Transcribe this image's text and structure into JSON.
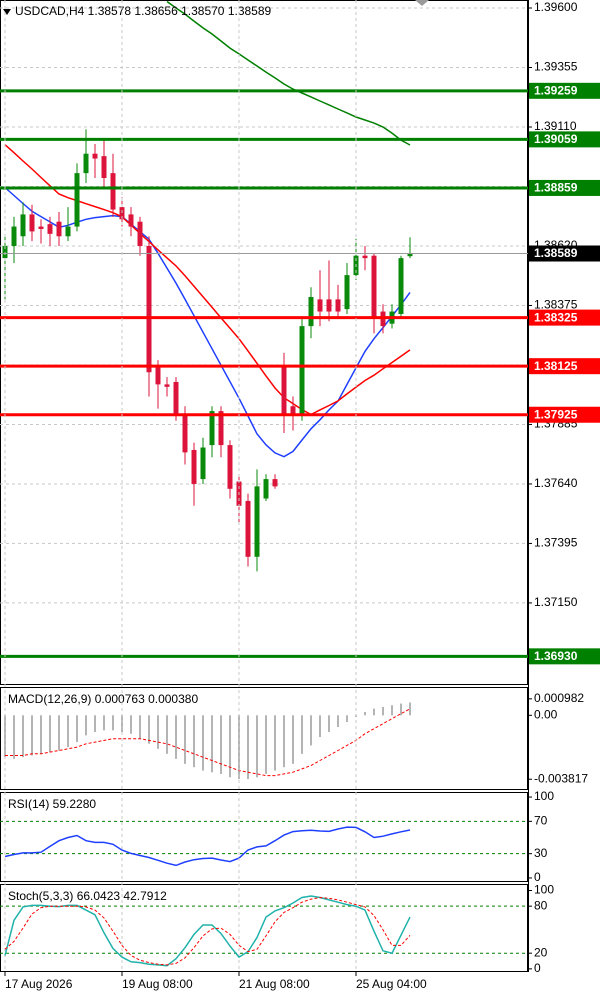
{
  "chart_data": [
    {
      "type": "candlestick",
      "title": "USDCAD,H4  1.38578 1.38656 1.38570 1.38589",
      "up_color": "#0a8a0a",
      "down_color": "#dc143c",
      "grid": true,
      "ylim": [
        1.36812,
        1.39633
      ],
      "yticks": [
        {
          "value": 1.396,
          "label": "1.39600"
        },
        1.39355,
        {
          "value": 1.3911,
          "label": "1.39110"
        },
        1.38865,
        {
          "value": 1.3862,
          "label": "1.38620"
        },
        1.38375,
        {
          "value": 1.3813,
          "label": "1.38130"
        },
        1.37885,
        {
          "value": 1.3764,
          "label": "1.37640"
        },
        1.37395,
        {
          "value": 1.3715,
          "label": "1.37150"
        }
      ],
      "open": [
        1.3857,
        1.3862,
        1.3866,
        1.3875,
        1.387,
        1.3871,
        1.3872,
        1.3866,
        1.387,
        1.3892,
        1.39,
        1.3899,
        1.3892,
        1.3878,
        1.3875,
        1.3872,
        1.3862,
        1.3812,
        1.3805,
        1.3806,
        1.3793,
        1.3778,
        1.3766,
        1.378,
        1.3794,
        1.378,
        1.3765,
        1.3757,
        1.3734,
        1.3758,
        1.3766,
        1.3812,
        1.3796,
        1.3793,
        1.3829,
        1.384,
        1.384,
        1.384,
        1.3836,
        1.385,
        1.3858,
        1.3858,
        1.3835,
        1.383,
        1.3834,
        1.38578
      ],
      "high": [
        1.3866,
        1.3874,
        1.388,
        1.3879,
        1.3873,
        1.3874,
        1.3876,
        1.3878,
        1.3896,
        1.391,
        1.3904,
        1.3906,
        1.39,
        1.3882,
        1.3878,
        1.3874,
        1.3866,
        1.3815,
        1.3808,
        1.3808,
        1.3796,
        1.3781,
        1.3783,
        1.3796,
        1.3796,
        1.3782,
        1.3768,
        1.376,
        1.377,
        1.3768,
        1.3768,
        1.3818,
        1.38,
        1.3832,
        1.3845,
        1.3852,
        1.3856,
        1.3846,
        1.3855,
        1.3865,
        1.3862,
        1.3859,
        1.3838,
        1.3838,
        1.3858,
        1.38656
      ],
      "low": [
        1.384,
        1.3855,
        1.3862,
        1.3864,
        1.3863,
        1.3862,
        1.3862,
        1.3864,
        1.3868,
        1.3888,
        1.389,
        1.3886,
        1.3874,
        1.387,
        1.3866,
        1.3858,
        1.38,
        1.3795,
        1.38,
        1.379,
        1.3772,
        1.3755,
        1.3764,
        1.3775,
        1.3775,
        1.3758,
        1.3748,
        1.373,
        1.3728,
        1.3757,
        1.3762,
        1.3785,
        1.3786,
        1.379,
        1.3824,
        1.3829,
        1.3831,
        1.3832,
        1.3834,
        1.3848,
        1.3852,
        1.3826,
        1.3826,
        1.3828,
        1.3832,
        1.3857
      ],
      "close": [
        1.3862,
        1.387,
        1.3875,
        1.3868,
        1.3869,
        1.3867,
        1.3866,
        1.387,
        1.3892,
        1.39,
        1.3898,
        1.389,
        1.3877,
        1.3873,
        1.387,
        1.3862,
        1.381,
        1.3805,
        1.3804,
        1.3792,
        1.3777,
        1.3764,
        1.3779,
        1.3794,
        1.378,
        1.3762,
        1.3755,
        1.3734,
        1.3763,
        1.3766,
        1.3763,
        1.3792,
        1.3793,
        1.3829,
        1.3841,
        1.3835,
        1.3835,
        1.3835,
        1.385,
        1.3858,
        1.3857,
        1.3833,
        1.3829,
        1.3835,
        1.3857,
        1.38589
      ],
      "moving_averages": [
        {
          "color": "#1f3fff",
          "values": [
            1.38861,
            1.38828,
            1.38795,
            1.38763,
            1.38741,
            1.38719,
            1.38697,
            1.38705,
            1.38718,
            1.3873,
            1.38737,
            1.38741,
            1.38745,
            1.38741,
            1.3871,
            1.38679,
            1.38648,
            1.3859,
            1.38529,
            1.38467,
            1.38401,
            1.38333,
            1.38265,
            1.38197,
            1.38129,
            1.38061,
            1.37993,
            1.3792,
            1.37846,
            1.37801,
            1.37768,
            1.37752,
            1.37774,
            1.37821,
            1.37867,
            1.37904,
            1.37945,
            1.37981,
            1.3805,
            1.38118,
            1.38186,
            1.38238,
            1.38284,
            1.38331,
            1.38378,
            1.38429
          ]
        },
        {
          "color": "#ff0000",
          "values": [
            1.39037,
            1.39004,
            1.3897,
            1.38937,
            1.38902,
            1.38868,
            1.38834,
            1.38819,
            1.38807,
            1.38794,
            1.38782,
            1.3877,
            1.38757,
            1.3874,
            1.38706,
            1.38672,
            1.38638,
            1.38604,
            1.38571,
            1.38538,
            1.38497,
            1.38454,
            1.38411,
            1.38368,
            1.38324,
            1.38281,
            1.38238,
            1.38188,
            1.38137,
            1.38085,
            1.38035,
            1.37995,
            1.37971,
            1.37946,
            1.37926,
            1.37945,
            1.37963,
            1.37982,
            1.38011,
            1.38039,
            1.38066,
            1.38088,
            1.38114,
            1.3814,
            1.38166,
            1.38192
          ]
        },
        {
          "color": "#008000",
          "values": [
            null,
            null,
            null,
            null,
            null,
            null,
            null,
            null,
            null,
            null,
            null,
            null,
            null,
            null,
            null,
            null,
            null,
            null,
            1.39627,
            1.396,
            1.39575,
            1.39546,
            1.39518,
            1.39493,
            1.39464,
            1.39435,
            1.39411,
            1.39386,
            1.39361,
            1.39336,
            1.39312,
            1.39287,
            1.39266,
            1.3925,
            1.39234,
            1.39217,
            1.39201,
            1.39184,
            1.39168,
            1.39151,
            1.39139,
            1.39126,
            1.3911,
            1.39085,
            1.39056,
            1.39036
          ]
        }
      ],
      "levels": [
        {
          "value": 1.39259,
          "color": "#008000"
        },
        {
          "value": 1.39059,
          "color": "#008000"
        },
        {
          "value": 1.38859,
          "color": "#008000"
        },
        {
          "value": 1.3693,
          "label": "1.36930",
          "color": "#008000"
        },
        {
          "value": 1.38325,
          "color": "#ff0000"
        },
        {
          "value": 1.38125,
          "color": "#ff0000"
        },
        {
          "value": 1.37925,
          "color": "#ff0000"
        }
      ],
      "current_price": 1.38589
    },
    {
      "type": "macd",
      "title": "MACD(12,26,9) 0.000763 0.000380",
      "ylim": [
        -0.00446,
        0.00163
      ],
      "yticks": [
        0.000982,
        {
          "value": 0,
          "label": "0.00"
        },
        -0.003817
      ],
      "histogram": {
        "color": "#b4b4b4",
        "values": [
          -0.0025,
          -0.0026,
          -0.0025,
          -0.0024,
          -0.0023,
          -0.0022,
          -0.0021,
          -0.0019,
          -0.0016,
          -0.0012,
          -0.001,
          -0.0009,
          -0.0009,
          -0.001,
          -0.0011,
          -0.0014,
          -0.0017,
          -0.002,
          -0.0023,
          -0.0026,
          -0.0029,
          -0.0031,
          -0.0033,
          -0.0034,
          -0.0035,
          -0.0037,
          -0.0038,
          -0.0038,
          -0.0037,
          -0.0035,
          -0.0033,
          -0.0031,
          -0.0029,
          -0.0023,
          -0.0018,
          -0.0013,
          -0.001,
          -0.0007,
          -0.0004,
          -0.0001,
          0.0002,
          0.0004,
          0.0005,
          0.0006,
          0.0007,
          0.000763
        ]
      },
      "signal": {
        "color": "#ff0000",
        "dashed": true,
        "values": [
          -0.0024,
          -0.0024,
          -0.0024,
          -0.0023,
          -0.0023,
          -0.0022,
          -0.0021,
          -0.002,
          -0.0019,
          -0.0017,
          -0.0016,
          -0.0015,
          -0.0014,
          -0.0014,
          -0.0014,
          -0.0014,
          -0.0015,
          -0.0016,
          -0.0017,
          -0.0019,
          -0.0021,
          -0.0023,
          -0.0025,
          -0.0027,
          -0.0029,
          -0.0031,
          -0.0033,
          -0.0034,
          -0.0035,
          -0.0036,
          -0.0036,
          -0.0035,
          -0.0034,
          -0.0032,
          -0.003,
          -0.0027,
          -0.0024,
          -0.0021,
          -0.0018,
          -0.0015,
          -0.0011,
          -0.0008,
          -0.0005,
          -0.0002,
          0.0001,
          0.00038
        ]
      }
    },
    {
      "type": "line",
      "title": "RSI(14) 59.2280",
      "ylim": [
        -5,
        105
      ],
      "yticks": [
        100,
        70,
        30,
        0
      ],
      "levels": [
        70,
        30
      ],
      "level_color": "#008000",
      "series": [
        {
          "color": "#1f3fff",
          "values": [
            26.5,
            29,
            31,
            31,
            31.8,
            39,
            46,
            50,
            52.5,
            46,
            44,
            44,
            41.6,
            34.4,
            30.4,
            27.8,
            25.3,
            21.8,
            18.2,
            15.5,
            19.7,
            22.6,
            24,
            24.6,
            22.2,
            20.2,
            24.6,
            34.6,
            38.4,
            39.6,
            46,
            53,
            57.3,
            58.3,
            58.9,
            58,
            57.5,
            60.5,
            62.8,
            62.5,
            57,
            50,
            51.6,
            54.5,
            57,
            59.228
          ]
        }
      ]
    },
    {
      "type": "line",
      "title": "Stoch(5,3,3) 66.0423 42.7912",
      "ylim": [
        -4,
        107
      ],
      "yticks": [
        100,
        80,
        20,
        0
      ],
      "levels": [
        80,
        20
      ],
      "level_color": "#008000",
      "series": [
        {
          "color": "#20b2aa",
          "values": [
            17,
            62,
            79,
            81,
            81,
            80,
            79.5,
            81,
            81,
            75,
            69,
            46,
            26,
            15,
            9,
            8,
            6,
            5,
            4,
            13,
            27,
            44,
            56,
            56,
            45,
            29,
            15,
            22,
            40,
            66,
            74,
            78,
            84,
            91,
            93,
            91,
            88,
            85,
            82,
            80,
            75,
            48,
            23,
            20,
            43,
            66.0423
          ]
        },
        {
          "color": "#ff0000",
          "dashed": true,
          "values": [
            25,
            35,
            52,
            70,
            78,
            80,
            80,
            80,
            80,
            79,
            75,
            65,
            48,
            30,
            17,
            11,
            8,
            6,
            5,
            7,
            14,
            27,
            42,
            51,
            52,
            44,
            30,
            22,
            25,
            42,
            60,
            72,
            78,
            85,
            89,
            91,
            90,
            88,
            85,
            82,
            79,
            68,
            50,
            30,
            30,
            42.7912
          ]
        }
      ],
      "xticks": [
        {
          "value": 0,
          "label": "17 Aug 2026"
        },
        {
          "value": 13,
          "label": "19 Aug 08:00"
        },
        {
          "value": 26,
          "label": "21 Aug 08:00"
        },
        {
          "value": 39,
          "label": "25 Aug 04:00"
        }
      ]
    }
  ]
}
